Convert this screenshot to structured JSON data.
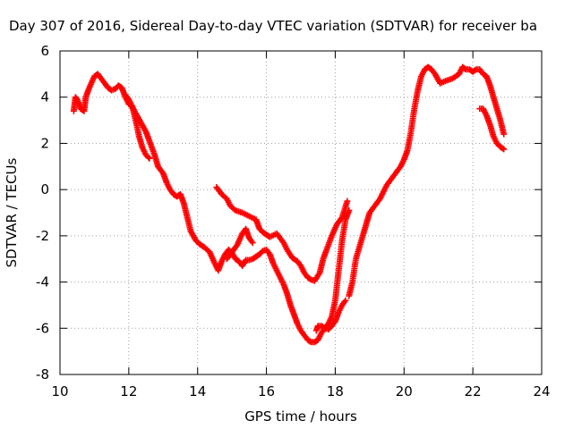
{
  "chart_data": {
    "type": "scatter",
    "title": "Day 307 of 2016, Sidereal Day-to-day VTEC variation (SDTVAR) for receiver ba",
    "xlabel": "GPS time / hours",
    "ylabel": "SDTVAR / TECUs",
    "xlim": [
      10,
      24
    ],
    "ylim": [
      -8,
      6
    ],
    "xticks": [
      10,
      12,
      14,
      16,
      18,
      20,
      22,
      24
    ],
    "yticks": [
      -8,
      -6,
      -4,
      -2,
      0,
      2,
      4,
      6
    ],
    "grid": true,
    "marker": "plus",
    "color": "#ff0000",
    "series": [
      {
        "name": "segment-1",
        "x": [
          10.4,
          10.45,
          10.5,
          10.6,
          10.7,
          10.75,
          10.85,
          11.0,
          11.1,
          11.25,
          11.4,
          11.5,
          11.6,
          11.7,
          11.8,
          11.9,
          12.0,
          12.1,
          12.2,
          12.35,
          12.5,
          12.6,
          12.75,
          12.85,
          13.0,
          13.1,
          13.2,
          13.3,
          13.4,
          13.5,
          13.6,
          13.7,
          13.8,
          13.95,
          14.05,
          14.2,
          14.35,
          14.5,
          14.6,
          14.7,
          14.8,
          14.9,
          15.0,
          15.1,
          15.2,
          15.3,
          15.4,
          15.5,
          15.6,
          15.7,
          15.8,
          15.9,
          16.0,
          16.1,
          16.2,
          16.3,
          16.5,
          16.6,
          16.7,
          16.8,
          16.9,
          17.0,
          17.1,
          17.2,
          17.3,
          17.4,
          17.5,
          17.6,
          17.7,
          17.8,
          17.9,
          18.0,
          18.1,
          18.2,
          18.3,
          18.4
        ],
        "y": [
          3.4,
          4.0,
          3.9,
          3.5,
          3.4,
          4.0,
          4.4,
          4.9,
          5.0,
          4.7,
          4.4,
          4.3,
          4.35,
          4.5,
          4.4,
          4.0,
          3.7,
          3.6,
          3.3,
          2.9,
          2.5,
          2.1,
          1.5,
          1.0,
          0.7,
          0.3,
          0.0,
          -0.2,
          -0.3,
          -0.2,
          -0.6,
          -1.2,
          -1.8,
          -2.2,
          -2.35,
          -2.5,
          -2.7,
          -3.2,
          -3.5,
          -3.1,
          -2.8,
          -2.6,
          -2.75,
          -3.0,
          -3.1,
          -3.3,
          -3.05,
          -3.05,
          -3.0,
          -2.9,
          -2.8,
          -2.65,
          -2.6,
          -2.8,
          -3.2,
          -3.5,
          -4.1,
          -4.5,
          -5.0,
          -5.4,
          -5.8,
          -6.1,
          -6.3,
          -6.5,
          -6.6,
          -6.6,
          -6.5,
          -6.2,
          -6.0,
          -5.8,
          -5.5,
          -4.8,
          -3.5,
          -2.2,
          -1.3,
          -0.9
        ]
      },
      {
        "name": "segment-2",
        "x": [
          11.9,
          12.0,
          12.1,
          12.2,
          12.3,
          12.4,
          12.5,
          12.6
        ],
        "y": [
          4.1,
          3.9,
          3.6,
          3.0,
          2.3,
          1.8,
          1.5,
          1.35
        ]
      },
      {
        "name": "segment-3",
        "x": [
          14.55,
          14.7,
          14.85,
          14.95,
          15.1,
          15.3,
          15.5,
          15.7,
          15.8,
          15.9,
          16.0,
          16.1,
          16.3,
          16.4,
          16.5,
          16.6,
          16.75,
          16.9,
          17.0,
          17.1,
          17.2,
          17.3,
          17.4,
          17.55,
          17.65,
          17.75,
          17.9,
          18.05,
          18.2,
          18.35
        ],
        "y": [
          0.1,
          -0.2,
          -0.4,
          -0.7,
          -0.9,
          -1.0,
          -1.15,
          -1.3,
          -1.7,
          -1.85,
          -1.95,
          -2.05,
          -1.9,
          -2.1,
          -2.3,
          -2.6,
          -2.95,
          -3.1,
          -3.3,
          -3.6,
          -3.8,
          -3.9,
          -3.95,
          -3.6,
          -3.0,
          -2.6,
          -2.0,
          -1.5,
          -1.2,
          -0.5
        ]
      },
      {
        "name": "segment-4",
        "x": [
          14.85,
          15.0,
          15.15,
          15.3,
          15.4,
          15.5,
          15.6
        ],
        "y": [
          -3.0,
          -2.7,
          -2.4,
          -1.9,
          -1.7,
          -2.1,
          -2.3
        ]
      },
      {
        "name": "segment-5",
        "x": [
          18.4,
          18.5,
          18.6,
          18.8,
          18.9,
          19.0,
          19.1,
          19.3,
          19.5,
          19.7,
          19.9,
          20.0,
          20.1,
          20.2,
          20.3,
          20.4,
          20.5,
          20.6,
          20.7,
          20.8,
          20.9,
          21.05,
          21.2,
          21.4,
          21.6,
          21.7,
          21.8,
          21.9,
          22.0,
          22.1,
          22.2,
          22.3,
          22.4,
          22.5,
          22.6,
          22.7,
          22.8,
          22.9
        ],
        "y": [
          -4.6,
          -4.0,
          -3.0,
          -2.0,
          -1.5,
          -1.0,
          -0.8,
          -0.4,
          0.2,
          0.6,
          1.0,
          1.3,
          1.7,
          2.5,
          3.5,
          4.3,
          4.9,
          5.2,
          5.3,
          5.2,
          5.0,
          4.6,
          4.7,
          4.8,
          5.0,
          5.3,
          5.2,
          5.2,
          5.1,
          5.2,
          5.2,
          5.0,
          4.9,
          4.5,
          4.0,
          3.5,
          3.0,
          2.4
        ]
      },
      {
        "name": "segment-6",
        "x": [
          22.2,
          22.3,
          22.4,
          22.5,
          22.6,
          22.7,
          22.8,
          22.9
        ],
        "y": [
          3.5,
          3.5,
          3.2,
          2.8,
          2.3,
          2.0,
          1.85,
          1.75
        ]
      },
      {
        "name": "segment-7",
        "x": [
          17.45,
          17.5,
          17.6,
          17.7,
          17.8,
          17.9,
          18.0,
          18.1,
          18.2,
          18.3
        ],
        "y": [
          -6.1,
          -5.9,
          -5.9,
          -6.0,
          -6.05,
          -5.9,
          -5.7,
          -5.3,
          -5.0,
          -4.8
        ]
      }
    ]
  }
}
